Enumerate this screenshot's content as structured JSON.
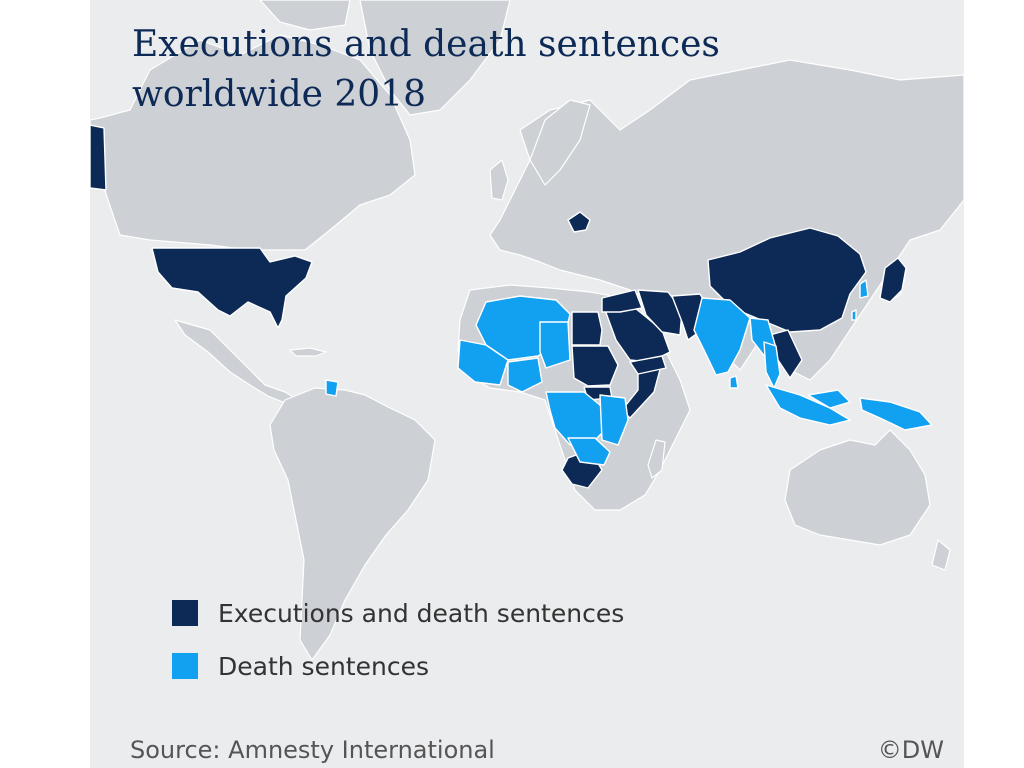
{
  "title": {
    "line1": "Executions and death sentences",
    "line2": "worldwide 2018"
  },
  "legend": [
    {
      "label": "Executions and death sentences",
      "color": "#0c2a55"
    },
    {
      "label": "Death sentences",
      "color": "#12a0f0"
    }
  ],
  "colors": {
    "background": "#ebecee",
    "land": "#cdd0d4",
    "executions": "#0c2a55",
    "death_sentences": "#12a0f0",
    "title": "#0c2a55"
  },
  "footer": {
    "source": "Source: Amnesty International",
    "credit": "©DW"
  }
}
